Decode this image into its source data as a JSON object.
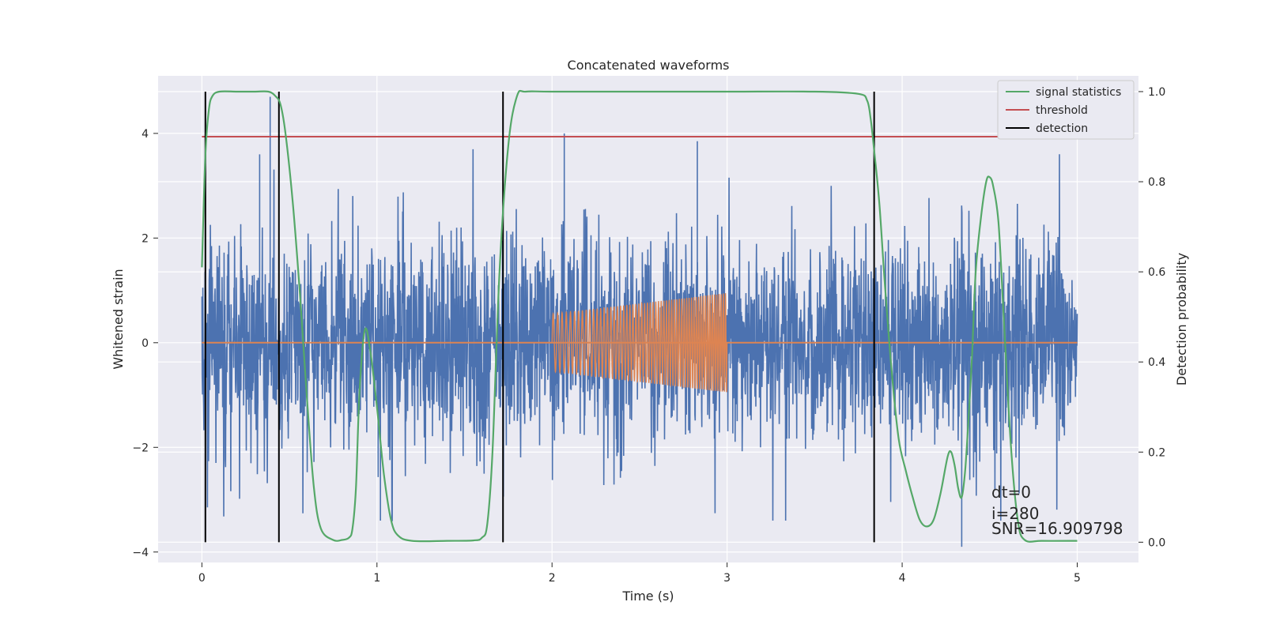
{
  "chart_data": {
    "type": "line",
    "title": "Concatenated waveforms",
    "xlabel": "Time (s)",
    "ylabel": "Whitened strain",
    "y2label": "Detection probability",
    "xlim": [
      -0.25,
      5.35
    ],
    "ylim": [
      -4.2,
      5.1
    ],
    "y2lim": [
      -0.045,
      1.035
    ],
    "x_ticks": [
      0,
      1,
      2,
      3,
      4,
      5
    ],
    "y_ticks": [
      -4,
      -2,
      0,
      2,
      4
    ],
    "y2_ticks": [
      0.0,
      0.2,
      0.4,
      0.6,
      0.8,
      1.0
    ],
    "x_tick_labels": [
      "0",
      "1",
      "2",
      "3",
      "4",
      "5"
    ],
    "y_tick_labels": [
      "−4",
      "−2",
      "0",
      "2",
      "4"
    ],
    "y2_tick_labels": [
      "0.0",
      "0.2",
      "0.4",
      "0.6",
      "0.8",
      "1.0"
    ],
    "grid": true,
    "legend_position": "top-right",
    "legend": [
      {
        "label": "signal statistics",
        "color": "#55a868"
      },
      {
        "label": "threshold",
        "color": "#c44e52"
      },
      {
        "label": "detection",
        "color": "#000000"
      }
    ],
    "colors": {
      "noise": "#4c72b0",
      "injection": "#dd8452",
      "statistic": "#55a868",
      "threshold": "#c44e52",
      "detection": "#000000",
      "background": "#eaeaf2",
      "grid": "#ffffff"
    },
    "series": [
      {
        "name": "signal statistics",
        "axis": "right",
        "x": [
          0.0,
          0.02,
          0.04,
          0.06,
          0.1,
          0.2,
          0.3,
          0.38,
          0.42,
          0.45,
          0.48,
          0.52,
          0.56,
          0.6,
          0.64,
          0.68,
          0.75,
          0.8,
          0.84,
          0.86,
          0.88,
          0.9,
          0.93,
          0.96,
          1.0,
          1.04,
          1.08,
          1.12,
          1.2,
          1.4,
          1.55,
          1.6,
          1.63,
          1.66,
          1.7,
          1.75,
          1.8,
          1.85,
          2.0,
          2.5,
          3.0,
          3.5,
          3.75,
          3.8,
          3.82,
          3.84,
          3.87,
          3.9,
          3.94,
          3.98,
          4.02,
          4.06,
          4.1,
          4.14,
          4.18,
          4.22,
          4.26,
          4.28,
          4.3,
          4.32,
          4.34,
          4.36,
          4.38,
          4.4,
          4.42,
          4.45,
          4.48,
          4.5,
          4.52,
          4.55,
          4.58,
          4.62,
          4.66,
          4.7,
          4.8,
          5.0
        ],
        "values": [
          0.61,
          0.86,
          0.96,
          0.99,
          1.0,
          1.0,
          1.0,
          1.0,
          0.99,
          0.97,
          0.9,
          0.75,
          0.55,
          0.32,
          0.12,
          0.03,
          0.005,
          0.005,
          0.01,
          0.03,
          0.12,
          0.33,
          0.47,
          0.43,
          0.3,
          0.15,
          0.05,
          0.015,
          0.003,
          0.003,
          0.004,
          0.01,
          0.04,
          0.2,
          0.6,
          0.88,
          0.99,
          1.0,
          1.0,
          1.0,
          1.0,
          1.0,
          0.995,
          0.98,
          0.94,
          0.87,
          0.75,
          0.58,
          0.38,
          0.23,
          0.16,
          0.1,
          0.05,
          0.035,
          0.05,
          0.11,
          0.19,
          0.2,
          0.17,
          0.12,
          0.1,
          0.16,
          0.28,
          0.42,
          0.6,
          0.72,
          0.8,
          0.81,
          0.79,
          0.71,
          0.5,
          0.22,
          0.05,
          0.005,
          0.003,
          0.003
        ]
      },
      {
        "name": "threshold",
        "axis": "right",
        "x": [
          0.0,
          5.1
        ],
        "values": [
          0.9,
          0.9
        ]
      }
    ],
    "detections": [
      0.02,
      0.44,
      1.72,
      3.84
    ],
    "noise_summary": {
      "x_range": [
        0,
        5
      ],
      "core_amplitude": 1.5,
      "spike_max": 4.7,
      "spike_min": -3.9
    },
    "injection_summary": {
      "x_range": [
        2,
        3
      ],
      "amplitude_start": 0.55,
      "amplitude_end": 0.95
    }
  },
  "annotations": {
    "dt": "dt=0",
    "i": "i=280",
    "snr": "SNR=16.909798"
  }
}
